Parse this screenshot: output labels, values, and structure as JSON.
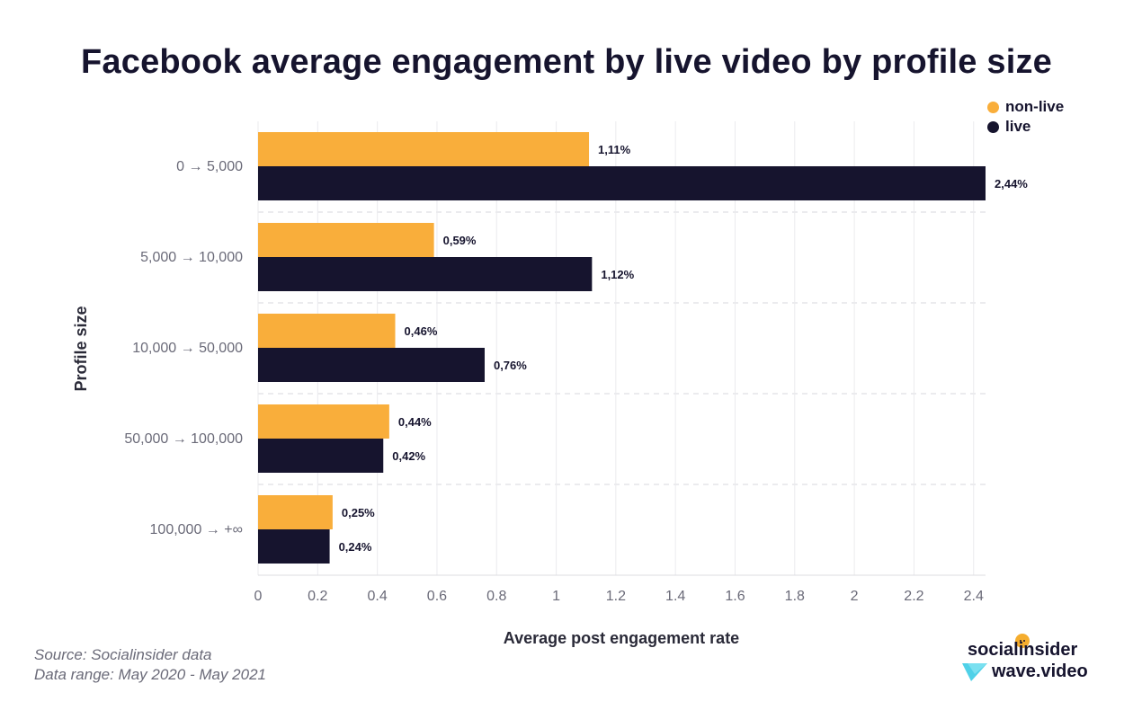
{
  "chart_data": {
    "type": "bar",
    "orientation": "horizontal",
    "title": "Facebook average engagement by live video by profile size",
    "xlabel": "Average post engagement rate",
    "ylabel": "Profile size",
    "categories": [
      "0 → 5,000",
      "5,000 → 10,000",
      "10,000 → 50,000",
      "50,000 → 100,000",
      "100,000 → +∞"
    ],
    "series": [
      {
        "name": "non-live",
        "color": "#f9ae3b",
        "values": [
          1.11,
          0.59,
          0.46,
          0.44,
          0.25
        ],
        "labels": [
          "1,11%",
          "0,59%",
          "0,46%",
          "0,44%",
          "0,25%"
        ]
      },
      {
        "name": "live",
        "color": "#16142e",
        "values": [
          2.44,
          1.12,
          0.76,
          0.42,
          0.24
        ],
        "labels": [
          "2,44%",
          "1,12%",
          "0,76%",
          "0,42%",
          "0,24%"
        ]
      }
    ],
    "xlim": [
      0,
      2.44
    ],
    "xticks": [
      0,
      0.2,
      0.4,
      0.6,
      0.8,
      1,
      1.2,
      1.4,
      1.6,
      1.8,
      2,
      2.2,
      2.4
    ],
    "xtick_labels": [
      "0",
      "0.2",
      "0.4",
      "0.6",
      "0.8",
      "1",
      "1.2",
      "1.4",
      "1.6",
      "1.8",
      "2",
      "2.2",
      "2.4"
    ],
    "grid": true,
    "legend_position": "top-right"
  },
  "footer": {
    "source": "Source: Socialinsider data",
    "range": "Data range: May 2020 - May 2021"
  },
  "brands": {
    "brand1": "socialinsider",
    "brand2": "wave.video"
  },
  "colors": {
    "title": "#16142e",
    "axis_text": "#6a6a78",
    "grid": "#ebebee"
  }
}
